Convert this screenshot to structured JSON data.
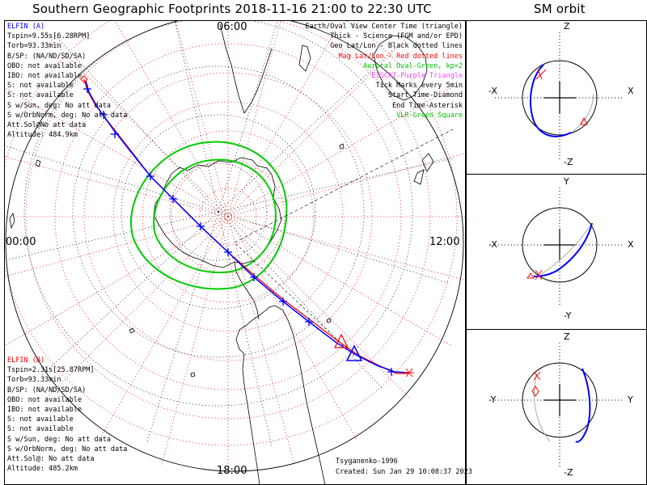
{
  "title": "Southern Geographic Footprints 2018-11-16 21:00 to 22:30 UTC",
  "orbit_title": "SM orbit",
  "local_time_labels": {
    "top": "06:00",
    "left": "00:00",
    "right": "12:00",
    "bottom": "18:00"
  },
  "elfin_a": {
    "name": "ELFIN (A)",
    "lines": [
      "Tspin=9.55s[6.28RPM]",
      "Torb=93.33min",
      "B/SP: (NA/ND/SD/SA)",
      "OBO: not available",
      "IBO: not available",
      "S: not available",
      "S: not available",
      "S w/Sun, deg: No att data",
      "S w/OrbNorm, deg: No att data",
      "Att.Sol@No att data",
      "Altitude: 484.9km"
    ]
  },
  "elfin_b": {
    "name": "ELFIN (B)",
    "lines": [
      "Tspin=2.31s[25.87RPM]",
      "Torb=93.33min",
      "B/SP: (NA/ND/SD/SA)",
      "OBO: not available",
      "IBO: not available",
      "S: not available",
      "S: not available",
      "S w/Sun, deg: No att data",
      "S w/OrbNorm, deg: No att data",
      "Att.Sol@: No att data",
      "Altitude: 485.2km"
    ]
  },
  "legend": [
    {
      "text": "Earth/Oval View Center Time (triangle)",
      "color": "#000000"
    },
    {
      "text": "Thick - Science (FGM and/or EPD)",
      "color": "#000000"
    },
    {
      "text": "Geo Lat/Lon - Black dotted lines",
      "color": "#000000"
    },
    {
      "text": "Mag Lat/Lon - Red dotted lines",
      "color": "#ff0000"
    },
    {
      "text": "Auroral Oval-Green, kp=2",
      "color": "#00c000"
    },
    {
      "text": "EISCAT-Purple Triangle",
      "color": "#ff40ff"
    },
    {
      "text": "Tick Marks every 5min",
      "color": "#000000"
    },
    {
      "text": "Start Time-Diamond",
      "color": "#000000"
    },
    {
      "text": "End Time-Asterisk",
      "color": "#000000"
    },
    {
      "text": "VLR-Green Square",
      "color": "#00c000"
    }
  ],
  "footer": {
    "model": "Tsyganenko-1996",
    "created": "Created: Sun Jan 29 10:08:37 2023"
  },
  "panels": [
    {
      "top": "Z",
      "bottom": "-Z",
      "left": "-X",
      "right": "X"
    },
    {
      "top": "Y",
      "bottom": "-Y",
      "left": "-X",
      "right": "X"
    },
    {
      "top": "Z",
      "bottom": "-Z",
      "left": "-Y",
      "right": "Y"
    }
  ],
  "colors": {
    "elfin_a": "#0000ff",
    "elfin_b": "#ff0000",
    "oval": "#00cc00",
    "mag_grid": "#e03030",
    "geo_grid": "#000000"
  }
}
